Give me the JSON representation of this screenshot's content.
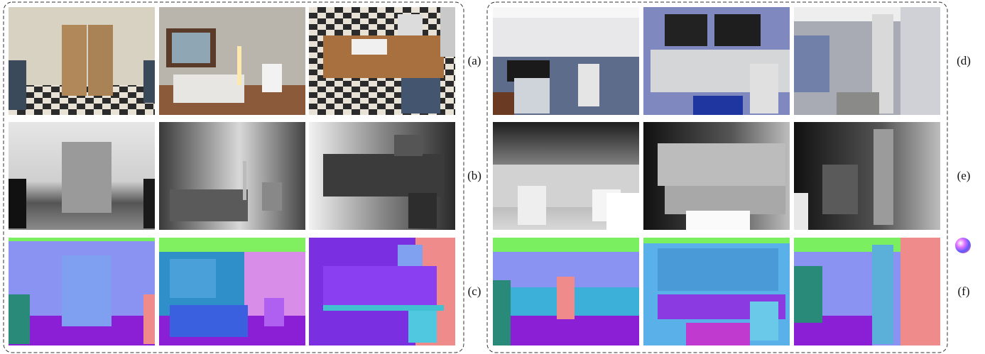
{
  "row_labels": [
    "(a)",
    "(b)",
    "(c)",
    "(d)",
    "(e)",
    "(f)"
  ]
}
